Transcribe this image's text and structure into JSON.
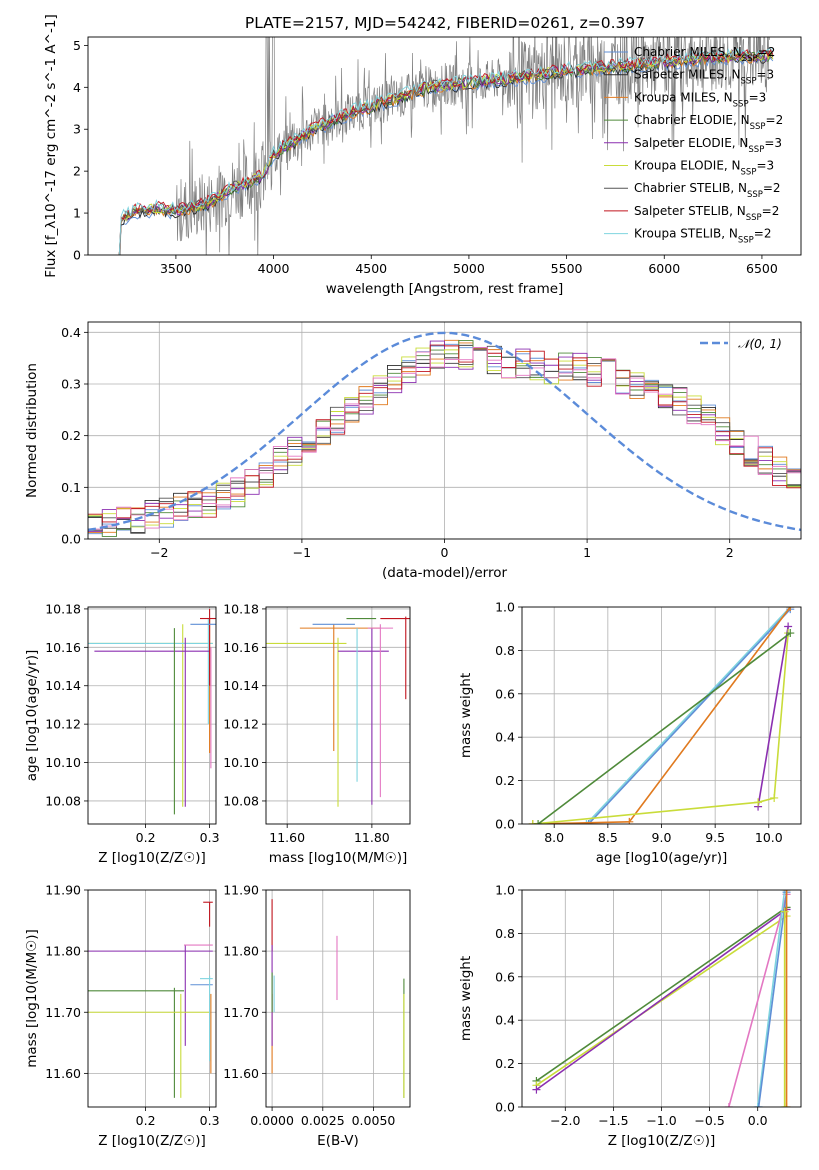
{
  "title": "PLATE=2157, MJD=54242, FIBERID=0261, z=0.397",
  "colors": {
    "Chabrier MILES": "#5f8fd6",
    "Salpeter MILES": "#2b2b2b",
    "Kroupa MILES": "#e07a1f",
    "Chabrier ELODIE": "#4f8a3a",
    "Salpeter ELODIE": "#8b2fb0",
    "Kroupa ELODIE": "#c9dc3a",
    "Chabrier STELIB": "#555555",
    "Salpeter STELIB": "#c0141e",
    "Kroupa STELIB": "#7fd4df",
    "pink": "#e377c2",
    "data": "#808080",
    "gauss": "#5b8bd9"
  },
  "chart_data": [
    {
      "id": "spectrum",
      "type": "line",
      "xlabel": "wavelength [Angstrom, rest frame]",
      "ylabel": "Flux [f_λ10^-17 erg cm^-2 s^-1 A^-1]",
      "xlim": [
        3050,
        6700
      ],
      "ylim": [
        0,
        5.2
      ],
      "xticks": [
        3500,
        4000,
        4500,
        5000,
        5500,
        6000,
        6500
      ],
      "yticks": [
        0,
        1,
        2,
        3,
        4,
        5
      ],
      "legend_position": "upper right",
      "legend": [
        {
          "name": "Chabrier MILES",
          "nssp": "2"
        },
        {
          "name": "Salpeter MILES",
          "nssp": "3"
        },
        {
          "name": "Kroupa MILES",
          "nssp": "3"
        },
        {
          "name": "Chabrier ELODIE",
          "nssp": "2"
        },
        {
          "name": "Salpeter ELODIE",
          "nssp": "3"
        },
        {
          "name": "Kroupa ELODIE",
          "nssp": "3"
        },
        {
          "name": "Chabrier STELIB",
          "nssp": "2"
        },
        {
          "name": "Salpeter STELIB",
          "nssp": "2"
        },
        {
          "name": "Kroupa STELIB",
          "nssp": "2"
        }
      ],
      "continuum": [
        [
          3210,
          0.0
        ],
        [
          3220,
          0.85
        ],
        [
          3300,
          1.05
        ],
        [
          3400,
          1.1
        ],
        [
          3500,
          1.05
        ],
        [
          3650,
          1.2
        ],
        [
          3800,
          1.6
        ],
        [
          3950,
          1.9
        ],
        [
          4000,
          2.4
        ],
        [
          4200,
          3.0
        ],
        [
          4400,
          3.4
        ],
        [
          4600,
          3.7
        ],
        [
          4800,
          4.0
        ],
        [
          5000,
          4.1
        ],
        [
          5200,
          4.2
        ],
        [
          5500,
          4.4
        ],
        [
          5800,
          4.5
        ],
        [
          6200,
          4.7
        ],
        [
          6550,
          4.75
        ]
      ]
    },
    {
      "id": "residuals",
      "type": "line",
      "xlabel": "(data-model)/error",
      "ylabel": "Normed distribution",
      "xlim": [
        -2.5,
        2.5
      ],
      "ylim": [
        0,
        0.42
      ],
      "xticks": [
        -2,
        -1,
        0,
        1,
        2
      ],
      "yticks": [
        0.0,
        0.1,
        0.2,
        0.3,
        0.4
      ],
      "gaussian_label": "𝒩(0, 1)",
      "histogram": {
        "bin_width": 0.1,
        "x_start": -2.5,
        "envelope": [
          0.03,
          0.03,
          0.035,
          0.04,
          0.045,
          0.05,
          0.06,
          0.065,
          0.07,
          0.08,
          0.09,
          0.11,
          0.13,
          0.15,
          0.17,
          0.19,
          0.21,
          0.23,
          0.25,
          0.27,
          0.29,
          0.31,
          0.33,
          0.345,
          0.355,
          0.36,
          0.355,
          0.35,
          0.345,
          0.34,
          0.34,
          0.335,
          0.33,
          0.33,
          0.33,
          0.325,
          0.32,
          0.31,
          0.3,
          0.29,
          0.28,
          0.27,
          0.25,
          0.23,
          0.21,
          0.19,
          0.17,
          0.15,
          0.13,
          0.11
        ]
      }
    },
    {
      "id": "age-vs-Z",
      "type": "scatter",
      "xlabel": "Z [log10(Z/Z☉)]",
      "ylabel": "age [log10(age/yr)]",
      "xlim": [
        0.11,
        0.31
      ],
      "ylim": [
        10.068,
        10.181
      ],
      "xticks": [
        0.2,
        0.3
      ],
      "yticks": [
        10.08,
        10.1,
        10.12,
        10.14,
        10.16,
        10.18
      ]
    },
    {
      "id": "age-vs-mass",
      "type": "scatter",
      "xlabel": "mass [log10(M/M☉)]",
      "ylabel": "",
      "xlim": [
        11.55,
        11.89
      ],
      "ylim": [
        10.068,
        10.181
      ],
      "xticks": [
        11.6,
        11.8
      ],
      "yticks": [
        10.08,
        10.1,
        10.12,
        10.14,
        10.16,
        10.18
      ]
    },
    {
      "id": "weight-vs-age",
      "type": "line",
      "xlabel": "age [log10(age/yr)]",
      "ylabel": "mass weight",
      "xlim": [
        7.7,
        10.3
      ],
      "ylim": [
        0,
        1
      ],
      "xticks": [
        8.0,
        8.5,
        9.0,
        9.5,
        10.0
      ],
      "yticks": [
        0.0,
        0.2,
        0.4,
        0.6,
        0.8,
        1.0
      ]
    },
    {
      "id": "mass-vs-Z",
      "type": "scatter",
      "xlabel": "Z [log10(Z/Z☉)]",
      "ylabel": "mass [log10(M/M☉)]",
      "xlim": [
        0.11,
        0.31
      ],
      "ylim": [
        11.545,
        11.9
      ],
      "xticks": [
        0.2,
        0.3
      ],
      "yticks": [
        11.6,
        11.7,
        11.8,
        11.9
      ]
    },
    {
      "id": "mass-vs-EBV",
      "type": "scatter",
      "xlabel": "E(B-V)",
      "ylabel": "",
      "xlim": [
        -0.0003,
        0.0068
      ],
      "ylim": [
        11.545,
        11.9
      ],
      "xticks": [
        0.0,
        0.0025,
        0.005
      ],
      "xticklabels": [
        "0.0000",
        "0.0025",
        "0.0050"
      ],
      "yticks": [
        11.6,
        11.7,
        11.8,
        11.9
      ]
    },
    {
      "id": "weight-vs-Z",
      "type": "line",
      "xlabel": "Z [log10(Z/Z☉)]",
      "ylabel": "mass weight",
      "xlim": [
        -2.45,
        0.45
      ],
      "ylim": [
        0,
        1
      ],
      "xticks": [
        -2.0,
        -1.5,
        -1.0,
        -0.5,
        0.0
      ],
      "yticks": [
        0.0,
        0.2,
        0.4,
        0.6,
        0.8,
        1.0
      ]
    }
  ]
}
